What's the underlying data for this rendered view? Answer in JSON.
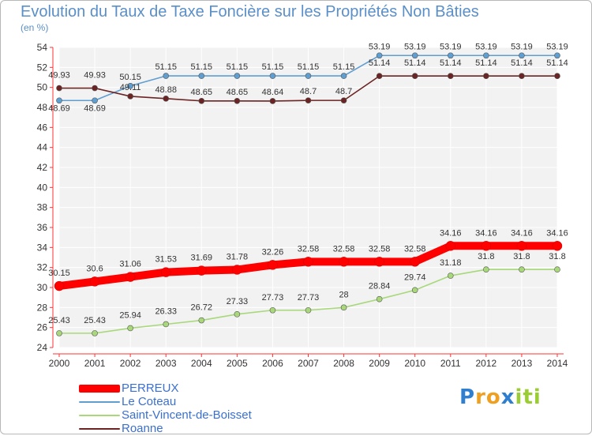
{
  "chart_data": {
    "type": "line",
    "title": "Evolution du Taux de Taxe Foncière sur les Propriétés Non Bâties",
    "ylabel": "(en %)",
    "xlabel": "",
    "x": [
      "2000",
      "2001",
      "2002",
      "2003",
      "2004",
      "2005",
      "2006",
      "2007",
      "2008",
      "2009",
      "2010",
      "2011",
      "2012",
      "2013",
      "2014"
    ],
    "ylim": [
      24,
      54
    ],
    "yticks": [
      "24",
      "26",
      "28",
      "30",
      "32",
      "34",
      "36",
      "38",
      "40",
      "42",
      "44",
      "46",
      "48",
      "50",
      "52",
      "54"
    ],
    "grid": true,
    "legend_position": "bottom-left",
    "series": [
      {
        "name": "PERREUX",
        "color": "#ff0000",
        "values": [
          30.15,
          30.6,
          31.06,
          31.53,
          31.69,
          31.78,
          32.26,
          32.58,
          32.58,
          32.58,
          32.58,
          34.16,
          34.16,
          34.16,
          34.16
        ],
        "labels": [
          "30.15",
          "30.6",
          "31.06",
          "31.53",
          "31.69",
          "31.78",
          "32.26",
          "32.58",
          "32.58",
          "32.58",
          "32.58",
          "34.16",
          "34.16",
          "34.16",
          "34.16"
        ]
      },
      {
        "name": "Le Coteau",
        "color": "#5f9ed1",
        "values": [
          48.69,
          48.69,
          50.15,
          51.15,
          51.15,
          51.15,
          51.15,
          51.15,
          51.15,
          53.19,
          53.19,
          53.19,
          53.19,
          53.19,
          53.19
        ],
        "labels": [
          "48.69",
          "48.69",
          "50.15",
          "51.15",
          "51.15",
          "51.15",
          "51.15",
          "51.15",
          "51.15",
          "53.19",
          "53.19",
          "53.19",
          "53.19",
          "53.19",
          "53.19"
        ]
      },
      {
        "name": "Saint-Vincent-de-Boisset",
        "color": "#a8d87a",
        "values": [
          25.43,
          25.43,
          25.94,
          26.33,
          26.72,
          27.33,
          27.73,
          27.73,
          28,
          28.84,
          29.74,
          31.18,
          31.8,
          31.8,
          31.8
        ],
        "labels": [
          "25.43",
          "25.43",
          "25.94",
          "26.33",
          "26.72",
          "27.33",
          "27.73",
          "27.73",
          "28",
          "28.84",
          "29.74",
          "31.18",
          "31.8",
          "31.8",
          "31.8"
        ]
      },
      {
        "name": "Roanne",
        "color": "#6b2323",
        "values": [
          49.93,
          49.93,
          49.11,
          48.88,
          48.65,
          48.65,
          48.64,
          48.7,
          48.7,
          51.14,
          51.14,
          51.14,
          51.14,
          51.14,
          51.14
        ],
        "labels": [
          "49.93",
          "49.93",
          "49.11",
          "48.88",
          "48.65",
          "48.65",
          "48.64",
          "48.7",
          "48.7",
          "51.14",
          "51.14",
          "51.14",
          "51.14",
          "51.14",
          "51.14"
        ]
      }
    ]
  },
  "logo": {
    "letters": [
      "P",
      "r",
      "o",
      "x",
      "i",
      "t",
      "i"
    ],
    "colors": [
      "#2f7fd0",
      "#f0a020",
      "#f0a020",
      "#2f7fd0",
      "#9acd32",
      "#9acd32",
      "#9acd32"
    ]
  }
}
